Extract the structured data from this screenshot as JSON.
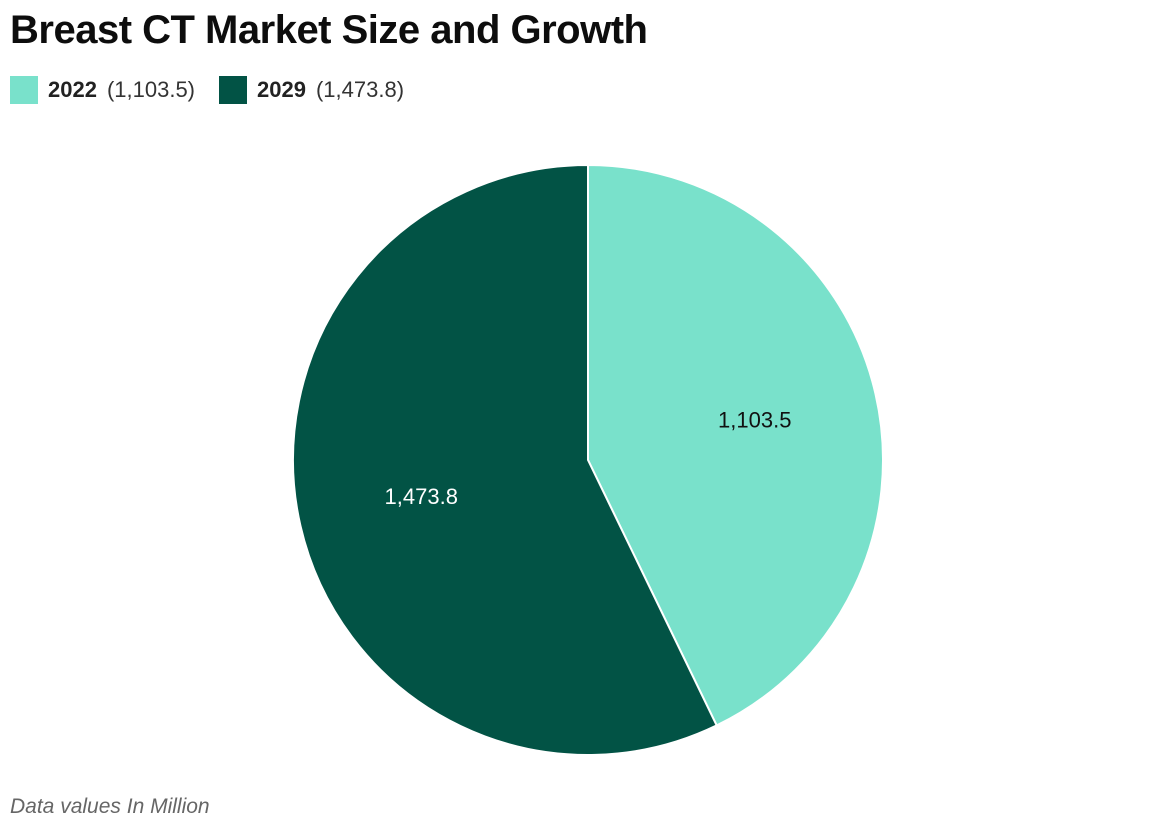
{
  "title": "Breast CT Market Size and Growth",
  "footnote": "Data values In Million",
  "chart_data": {
    "type": "pie",
    "title": "Breast CT Market Size and Growth",
    "legend_position": "top-left",
    "slices": [
      {
        "name": "2022",
        "value": 1103.5,
        "label": "1,103.5",
        "legend_value": "(1,103.5)",
        "color": "#79e1cb",
        "label_color": "#111111"
      },
      {
        "name": "2029",
        "value": 1473.8,
        "label": "1,473.8",
        "legend_value": "(1,473.8)",
        "color": "#025345",
        "label_color": "#ffffff"
      }
    ]
  }
}
